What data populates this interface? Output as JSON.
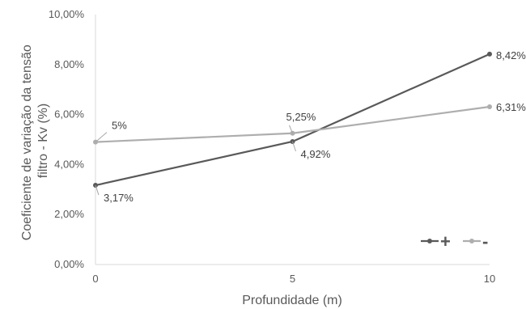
{
  "chart_data": {
    "type": "line",
    "title": "",
    "xlabel": "Profundidade (m)",
    "ylabel_lines": [
      "Coeficiente de variação da tensão",
      "filtro - Kv (%)"
    ],
    "x": [
      0,
      5,
      10
    ],
    "x_ticks": [
      "0",
      "5",
      "10"
    ],
    "xlim": [
      0,
      10
    ],
    "ylim": [
      0,
      10
    ],
    "y_ticks": [
      "0,00%",
      "2,00%",
      "4,00%",
      "6,00%",
      "8,00%",
      "10,00%"
    ],
    "grid": false,
    "legend_position": "bottom-right",
    "series": [
      {
        "name": "+",
        "color": "#595959",
        "values": [
          3.17,
          4.92,
          8.42
        ],
        "labels": [
          "3,17%",
          "4,92%",
          "8,42%"
        ]
      },
      {
        "name": "-",
        "color": "#AEAEAE",
        "values": [
          4.9,
          5.25,
          6.31
        ],
        "labels": [
          "5%",
          "5,25%",
          "6,31%"
        ]
      }
    ]
  }
}
